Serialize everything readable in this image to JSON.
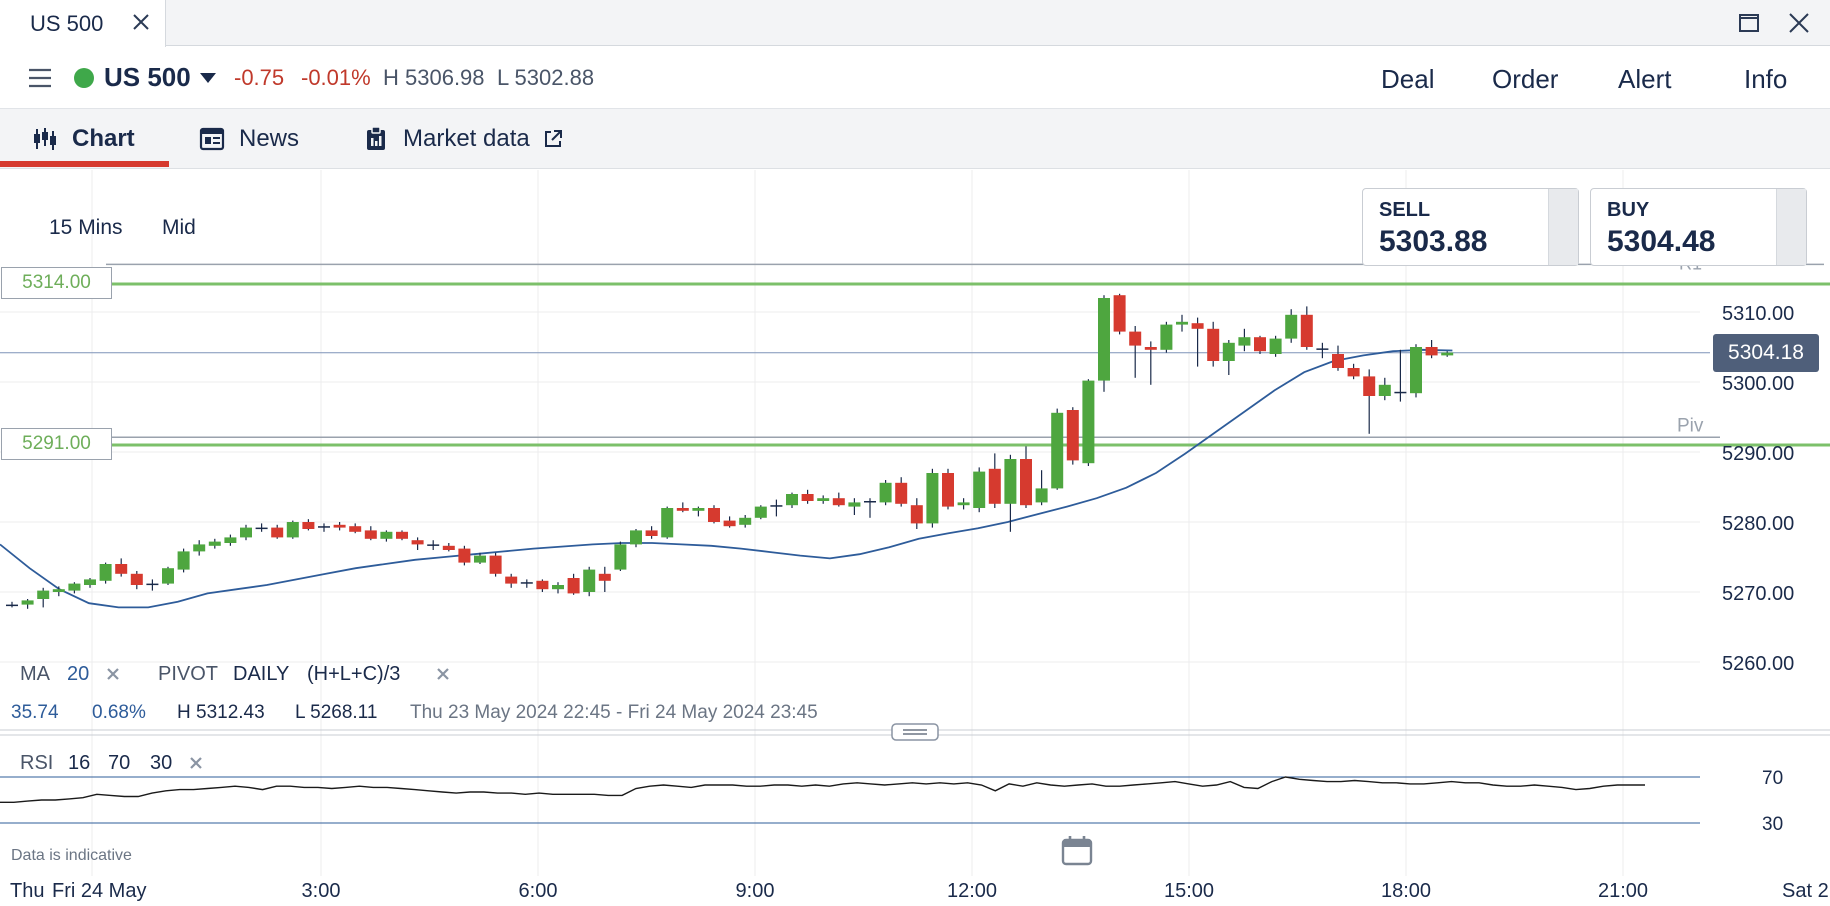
{
  "window": {
    "tab_title": "US 500"
  },
  "instrument": {
    "name": "US 500",
    "change": "-0.75",
    "change_pct": "-0.01%",
    "high": "H 5306.98",
    "low": "L 5302.88",
    "status_color": "#3fa84a"
  },
  "actions": {
    "deal": "Deal",
    "order": "Order",
    "alert": "Alert",
    "info": "Info"
  },
  "tabs": [
    {
      "label": "Chart",
      "icon": "candlestick-icon",
      "active": true
    },
    {
      "label": "News",
      "icon": "newspaper-icon",
      "active": false
    },
    {
      "label": "Market data",
      "icon": "clipboard-icon",
      "active": false,
      "external": "external-link-icon"
    }
  ],
  "chart_controls": {
    "timeframe": "15 Mins",
    "price_type": "Mid"
  },
  "quotes": {
    "sell_label": "SELL",
    "sell_price": "5303.88",
    "buy_label": "BUY",
    "buy_price": "5304.48"
  },
  "levels": {
    "upper": "5314.00",
    "lower": "5291.00",
    "pivot_label": "Piv",
    "r1_label": "R1",
    "current_price": "5304.18"
  },
  "indicators": {
    "ma_label": "MA",
    "ma_period": "20",
    "pivot_label": "PIVOT",
    "pivot_period": "DAILY",
    "pivot_formula": "(H+L+C)/3",
    "change_value": "35.74",
    "change_pct": "0.68%",
    "range_high": "H 5312.43",
    "range_low": "L 5268.11",
    "range_dates": "Thu 23 May 2024 22:45 - Fri 24 May 2024 23:45",
    "rsi_label": "RSI",
    "rsi_period": "16",
    "rsi_upper": "70",
    "rsi_lower": "30"
  },
  "footer": {
    "disclaimer": "Data is indicative"
  },
  "colors": {
    "up": "#4ea63f",
    "down": "#d63a2f",
    "ma": "#2e5c9a",
    "level": "#7cc06a",
    "accent": "#d63a2f"
  },
  "chart_data": {
    "type": "candlestick",
    "y_ticks": [
      "5310.00",
      "5300.00",
      "5290.00",
      "5280.00",
      "5270.00",
      "5260.00"
    ],
    "x_ticks": [
      "Fri 24 May",
      "3:00",
      "6:00",
      "9:00",
      "12:00",
      "15:00",
      "18:00",
      "21:00"
    ],
    "x_edge_left": "Thu",
    "x_edge_right": "Sat 2",
    "ylim": [
      5258,
      5318
    ],
    "candles": [
      [
        5268.0,
        5268.6,
        5267.8,
        5268.2
      ],
      [
        5268.2,
        5269.0,
        5267.6,
        5268.8
      ],
      [
        5269.0,
        5270.6,
        5267.8,
        5270.2
      ],
      [
        5270.0,
        5270.8,
        5269.4,
        5270.4
      ],
      [
        5270.2,
        5271.4,
        5269.8,
        5271.2
      ],
      [
        5271.0,
        5272.0,
        5270.6,
        5271.8
      ],
      [
        5271.6,
        5274.2,
        5271.2,
        5274.0
      ],
      [
        5274.0,
        5274.8,
        5272.2,
        5272.6
      ],
      [
        5272.6,
        5273.0,
        5270.4,
        5271.0
      ],
      [
        5271.0,
        5271.8,
        5270.2,
        5271.2
      ],
      [
        5271.2,
        5273.6,
        5271.0,
        5273.4
      ],
      [
        5273.2,
        5276.2,
        5272.8,
        5275.8
      ],
      [
        5275.8,
        5277.4,
        5275.2,
        5276.8
      ],
      [
        5276.6,
        5277.6,
        5276.2,
        5277.2
      ],
      [
        5277.0,
        5278.2,
        5276.6,
        5277.8
      ],
      [
        5277.8,
        5279.6,
        5277.4,
        5279.2
      ],
      [
        5279.2,
        5279.8,
        5278.6,
        5279.2
      ],
      [
        5279.2,
        5279.6,
        5277.6,
        5277.8
      ],
      [
        5277.8,
        5280.2,
        5277.6,
        5280.0
      ],
      [
        5280.0,
        5280.4,
        5278.8,
        5279.0
      ],
      [
        5279.2,
        5279.8,
        5278.6,
        5279.4
      ],
      [
        5279.6,
        5280.0,
        5278.8,
        5279.2
      ],
      [
        5279.4,
        5279.8,
        5278.4,
        5278.6
      ],
      [
        5278.8,
        5279.4,
        5277.4,
        5277.6
      ],
      [
        5277.6,
        5278.8,
        5277.2,
        5278.6
      ],
      [
        5278.6,
        5278.8,
        5277.4,
        5277.6
      ],
      [
        5277.4,
        5277.8,
        5276.0,
        5276.8
      ],
      [
        5276.8,
        5277.4,
        5276.0,
        5276.6
      ],
      [
        5276.6,
        5277.0,
        5275.8,
        5276.0
      ],
      [
        5276.2,
        5276.6,
        5273.8,
        5274.2
      ],
      [
        5274.2,
        5275.6,
        5274.0,
        5275.2
      ],
      [
        5275.2,
        5275.6,
        5272.2,
        5272.6
      ],
      [
        5272.2,
        5272.6,
        5270.6,
        5271.2
      ],
      [
        5271.2,
        5271.8,
        5270.6,
        5271.4
      ],
      [
        5271.6,
        5271.8,
        5270.0,
        5270.4
      ],
      [
        5270.4,
        5271.4,
        5269.8,
        5271.0
      ],
      [
        5272.0,
        5272.6,
        5269.6,
        5269.8
      ],
      [
        5270.0,
        5273.6,
        5269.4,
        5273.2
      ],
      [
        5272.6,
        5273.6,
        5270.0,
        5271.6
      ],
      [
        5273.2,
        5277.2,
        5273.0,
        5276.8
      ],
      [
        5276.8,
        5279.0,
        5276.4,
        5278.8
      ],
      [
        5278.8,
        5279.4,
        5277.6,
        5278.0
      ],
      [
        5277.8,
        5282.2,
        5277.6,
        5282.0
      ],
      [
        5282.0,
        5282.8,
        5281.4,
        5281.6
      ],
      [
        5281.6,
        5282.2,
        5280.8,
        5282.0
      ],
      [
        5282.0,
        5282.4,
        5279.8,
        5280.0
      ],
      [
        5280.2,
        5280.8,
        5279.2,
        5279.4
      ],
      [
        5279.6,
        5281.0,
        5279.2,
        5280.6
      ],
      [
        5280.6,
        5282.4,
        5280.4,
        5282.2
      ],
      [
        5282.4,
        5283.2,
        5280.8,
        5282.4
      ],
      [
        5282.4,
        5284.2,
        5282.0,
        5284.0
      ],
      [
        5284.0,
        5284.6,
        5282.6,
        5283.0
      ],
      [
        5283.0,
        5283.8,
        5282.6,
        5283.4
      ],
      [
        5283.4,
        5284.2,
        5282.2,
        5282.4
      ],
      [
        5282.2,
        5283.4,
        5281.0,
        5282.8
      ],
      [
        5282.8,
        5283.4,
        5280.6,
        5283.0
      ],
      [
        5282.8,
        5286.0,
        5282.4,
        5285.6
      ],
      [
        5285.6,
        5286.4,
        5282.2,
        5282.6
      ],
      [
        5282.4,
        5283.4,
        5279.0,
        5279.8
      ],
      [
        5279.8,
        5287.6,
        5279.2,
        5287.0
      ],
      [
        5287.0,
        5287.6,
        5281.8,
        5282.2
      ],
      [
        5282.4,
        5283.4,
        5281.8,
        5282.8
      ],
      [
        5282.0,
        5287.8,
        5281.4,
        5287.2
      ],
      [
        5287.6,
        5289.8,
        5282.0,
        5282.6
      ],
      [
        5282.6,
        5289.6,
        5278.6,
        5289.0
      ],
      [
        5289.0,
        5290.8,
        5282.0,
        5282.4
      ],
      [
        5282.8,
        5287.4,
        5282.4,
        5284.8
      ],
      [
        5284.8,
        5296.2,
        5284.6,
        5295.6
      ],
      [
        5296.0,
        5296.4,
        5288.2,
        5288.8
      ],
      [
        5288.4,
        5300.4,
        5288.0,
        5300.2
      ],
      [
        5300.2,
        5312.4,
        5298.6,
        5312.0
      ],
      [
        5312.4,
        5312.6,
        5306.8,
        5307.2
      ],
      [
        5307.2,
        5308.0,
        5300.6,
        5305.2
      ],
      [
        5305.0,
        5305.8,
        5299.6,
        5304.6
      ],
      [
        5304.6,
        5308.6,
        5304.2,
        5308.2
      ],
      [
        5308.2,
        5309.6,
        5307.2,
        5308.6
      ],
      [
        5308.4,
        5309.2,
        5302.2,
        5307.6
      ],
      [
        5307.6,
        5308.6,
        5302.2,
        5303.0
      ],
      [
        5303.0,
        5306.0,
        5301.0,
        5305.6
      ],
      [
        5305.2,
        5307.6,
        5304.4,
        5306.4
      ],
      [
        5306.4,
        5306.6,
        5304.0,
        5304.4
      ],
      [
        5304.0,
        5306.6,
        5303.6,
        5306.2
      ],
      [
        5306.2,
        5310.4,
        5305.6,
        5309.6
      ],
      [
        5309.6,
        5310.8,
        5304.6,
        5305.0
      ],
      [
        5304.8,
        5305.6,
        5303.4,
        5304.6
      ],
      [
        5304.0,
        5305.2,
        5301.6,
        5302.0
      ],
      [
        5302.0,
        5302.6,
        5300.4,
        5300.8
      ],
      [
        5300.8,
        5301.8,
        5292.6,
        5298.0
      ],
      [
        5298.0,
        5300.6,
        5297.4,
        5299.6
      ],
      [
        5298.6,
        5304.6,
        5297.2,
        5298.4
      ],
      [
        5298.4,
        5305.4,
        5297.8,
        5305.0
      ],
      [
        5305.0,
        5306.0,
        5303.4,
        5303.8
      ],
      [
        5303.8,
        5304.4,
        5303.6,
        5304.2
      ]
    ],
    "ma20": [
      5276.8,
      5273.4,
      5270.4,
      5268.4,
      5267.8,
      5267.8,
      5268.6,
      5269.8,
      5270.4,
      5271.0,
      5271.8,
      5272.6,
      5273.4,
      5274.0,
      5274.6,
      5275.0,
      5275.4,
      5275.8,
      5276.2,
      5276.5,
      5276.8,
      5277.0,
      5277.0,
      5276.8,
      5276.6,
      5276.2,
      5275.7,
      5275.2,
      5274.8,
      5275.4,
      5276.4,
      5277.6,
      5278.4,
      5279.1,
      5280.0,
      5281.1,
      5282.2,
      5283.4,
      5284.9,
      5287.0,
      5289.8,
      5292.8,
      5295.8,
      5298.8,
      5301.4,
      5303.0,
      5303.8,
      5304.4,
      5304.6,
      5304.5
    ],
    "ma_x_start_bar": 0,
    "ma_x_step_bars": 1.9,
    "rsi": [
      48,
      48,
      49,
      50,
      50,
      51,
      52,
      55,
      54,
      53,
      53,
      56,
      58,
      59,
      59,
      60,
      61,
      62,
      61,
      59,
      62,
      62,
      61,
      61,
      60,
      61,
      62,
      61,
      61,
      60,
      59,
      58,
      57,
      56,
      57,
      57,
      56,
      56,
      55,
      56,
      55,
      55,
      55,
      55,
      54,
      54,
      60,
      62,
      63,
      62,
      61,
      63,
      63,
      63,
      62,
      62,
      63,
      63,
      62,
      63,
      62,
      64,
      65,
      64,
      63,
      64,
      65,
      64,
      65,
      64,
      65,
      63,
      58,
      64,
      62,
      65,
      63,
      62,
      63,
      64,
      62,
      62,
      63,
      64,
      65,
      66,
      64,
      62,
      63,
      66,
      61,
      60,
      66,
      70,
      68,
      67,
      66,
      66,
      67,
      66,
      65,
      65,
      64,
      64,
      65,
      66,
      65,
      65,
      63,
      62,
      62,
      63,
      62,
      61,
      59,
      60,
      62,
      63,
      63,
      63
    ],
    "rsi_ylim": [
      20,
      75
    ],
    "levels": {
      "r1": 5316.8,
      "upper": 5314.0,
      "current": 5304.18,
      "pivot": 5292.1,
      "lower": 5291.0
    }
  }
}
